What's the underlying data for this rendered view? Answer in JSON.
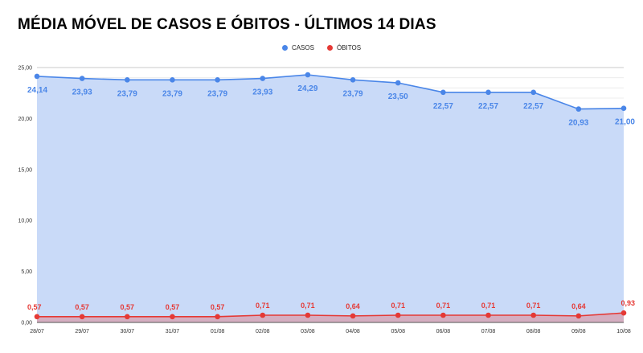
{
  "chart_data": {
    "type": "area",
    "title": "MÉDIA MÓVEL DE CASOS E ÓBITOS - ÚLTIMOS 14 DIAS",
    "categories": [
      "28/07",
      "29/07",
      "30/07",
      "31/07",
      "01/08",
      "02/08",
      "03/08",
      "04/08",
      "05/08",
      "06/08",
      "07/08",
      "08/08",
      "09/08",
      "10/08"
    ],
    "series": [
      {
        "name": "CASOS",
        "values": [
          24.14,
          23.93,
          23.79,
          23.79,
          23.79,
          23.93,
          24.29,
          23.79,
          23.5,
          22.57,
          22.57,
          22.57,
          20.93,
          21.0
        ],
        "labels": [
          "24,14",
          "23,93",
          "23,79",
          "23,79",
          "23,79",
          "23,93",
          "24,29",
          "23,79",
          "23,50",
          "22,57",
          "22,57",
          "22,57",
          "20,93",
          "21,00"
        ],
        "color": "#4a86e8",
        "fill": "#c9daf8"
      },
      {
        "name": "ÓBITOS",
        "values": [
          0.57,
          0.57,
          0.57,
          0.57,
          0.57,
          0.71,
          0.71,
          0.64,
          0.71,
          0.71,
          0.71,
          0.71,
          0.64,
          0.93
        ],
        "labels": [
          "0,57",
          "0,57",
          "0,57",
          "0,57",
          "0,57",
          "0,71",
          "0,71",
          "0,64",
          "0,71",
          "0,71",
          "0,71",
          "0,71",
          "0,64",
          "0,93"
        ],
        "color": "#e53935",
        "fill": "#d7a6b7"
      }
    ],
    "ylim": [
      0,
      25
    ],
    "yticks": [
      "0,00",
      "5,00",
      "10,00",
      "15,00",
      "20,00",
      "25,00"
    ],
    "xlabel": "",
    "ylabel": "",
    "grid": true,
    "legend_position": "top"
  }
}
